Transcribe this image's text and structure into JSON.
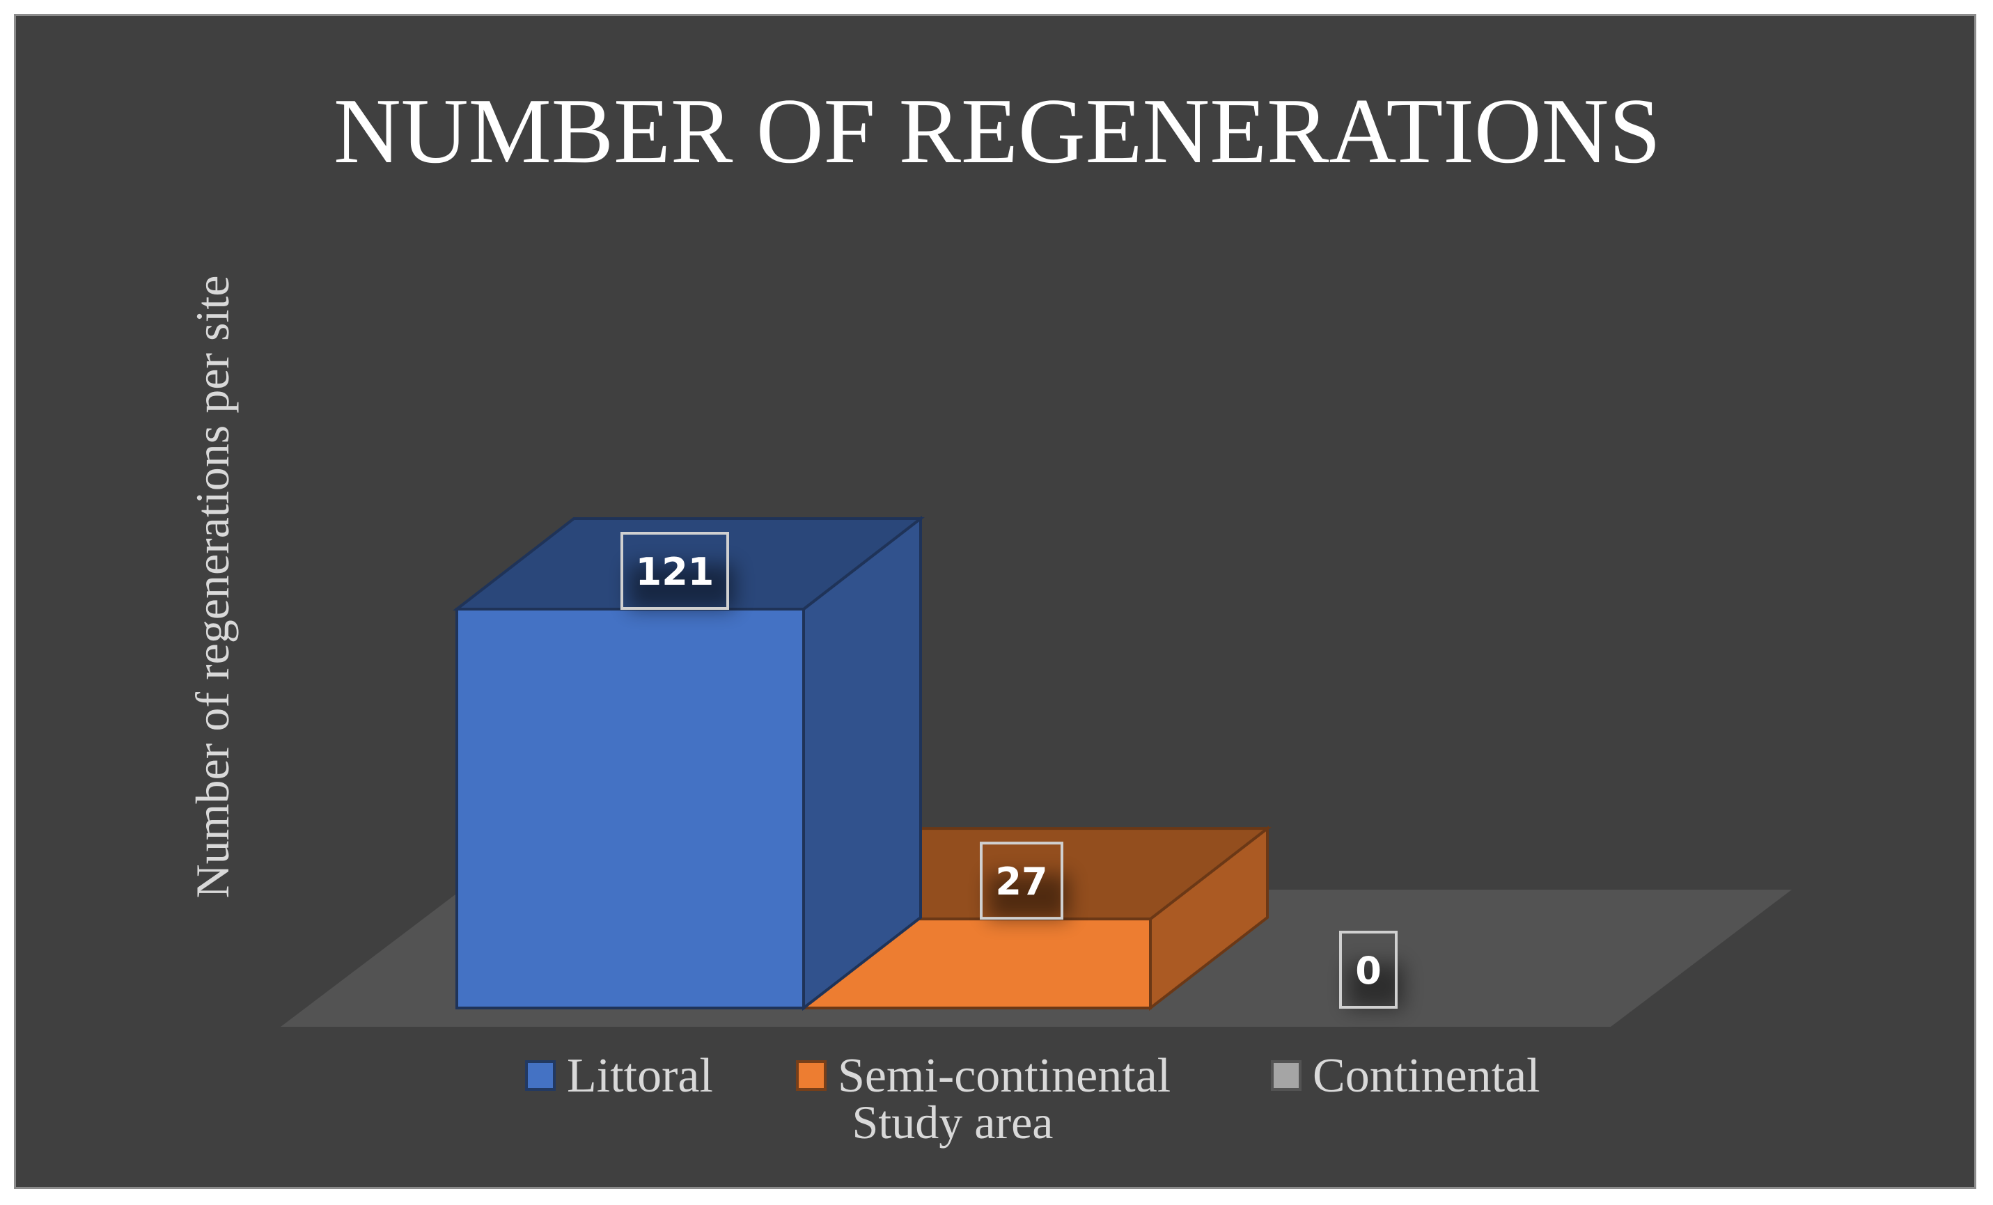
{
  "chart_data": {
    "type": "bar",
    "title": "NUMBER OF REGENERATIONS",
    "xlabel": "Study area",
    "ylabel": "Number of regenerations per site",
    "categories": [
      "Littoral",
      "Semi-continental",
      "Continental"
    ],
    "values": [
      121,
      27,
      0
    ],
    "data_labels": [
      "121",
      "27",
      "0"
    ],
    "ylim": [
      0,
      121
    ],
    "colors": [
      "#4472c4",
      "#ed7d31",
      "#a5a5a5"
    ],
    "legend": {
      "placement": "bottom",
      "entries": [
        "Littoral",
        "Semi-continental",
        "Continental"
      ]
    },
    "grid": false,
    "style": "3d-column"
  }
}
